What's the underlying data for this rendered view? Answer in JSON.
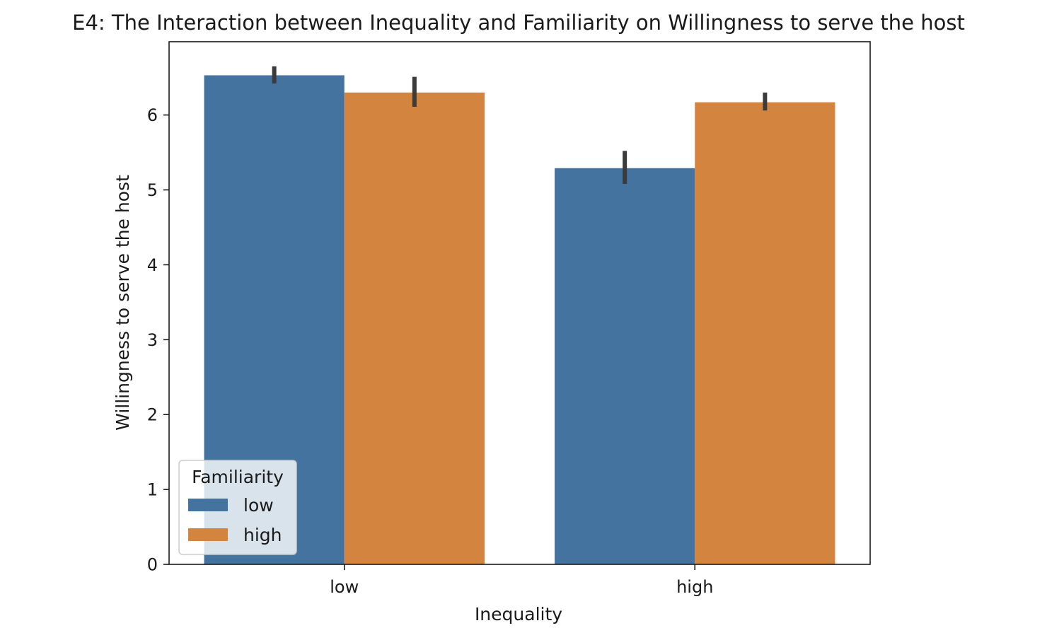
{
  "chart_data": {
    "type": "bar",
    "title": "E4: The Interaction between Inequality and Familiarity on Willingness to serve the host",
    "xlabel": "Inequality",
    "ylabel": "Willingness to serve the host",
    "categories": [
      "low",
      "high"
    ],
    "ylim": [
      0,
      6.7
    ],
    "yticks": [
      0,
      1,
      2,
      3,
      4,
      5,
      6
    ],
    "grid": false,
    "legend": {
      "title": "Familiarity",
      "placement": "lower-left"
    },
    "series": [
      {
        "name": "low",
        "color": "#4473a0",
        "values": [
          6.53,
          5.29
        ],
        "error_low": [
          6.42,
          5.08
        ],
        "error_high": [
          6.65,
          5.52
        ]
      },
      {
        "name": "high",
        "color": "#d3843f",
        "values": [
          6.3,
          6.17
        ],
        "error_low": [
          6.11,
          6.06
        ],
        "error_high": [
          6.51,
          6.3
        ]
      }
    ],
    "error_bar_color": "#3b3b3b"
  }
}
